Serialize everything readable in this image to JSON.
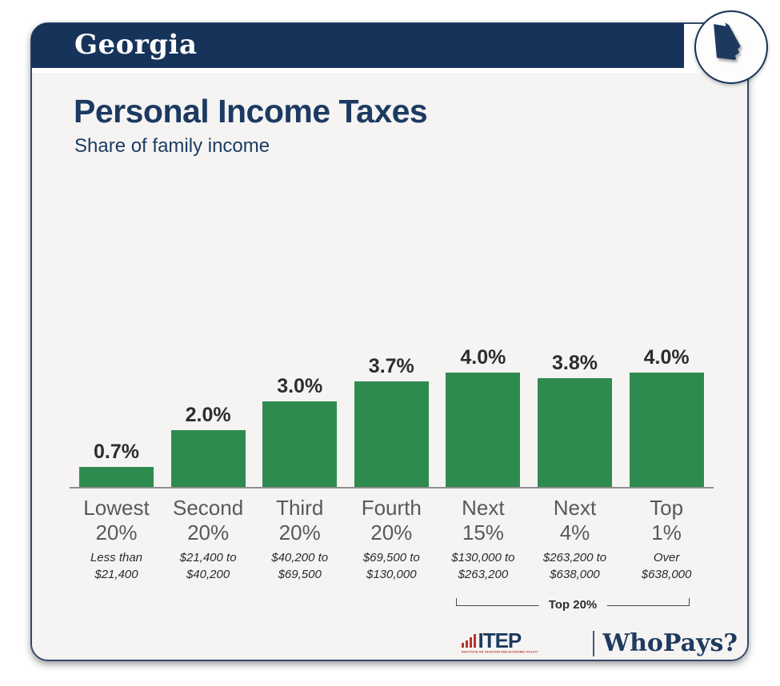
{
  "header": {
    "state_name": "Georgia"
  },
  "title": "Personal Income Taxes",
  "subtitle": "Share of family income",
  "chart_data": {
    "type": "bar",
    "title": "Personal Income Taxes",
    "subtitle": "Share of family income",
    "unit": "percent of family income",
    "categories": [
      [
        "Lowest",
        "20%"
      ],
      [
        "Second",
        "20%"
      ],
      [
        "Third",
        "20%"
      ],
      [
        "Fourth",
        "20%"
      ],
      [
        "Next",
        "15%"
      ],
      [
        "Next",
        "4%"
      ],
      [
        "Top",
        "1%"
      ]
    ],
    "income_ranges": [
      [
        "Less than",
        "$21,400"
      ],
      [
        "$21,400 to",
        "$40,200"
      ],
      [
        "$40,200 to",
        "$69,500"
      ],
      [
        "$69,500 to",
        "$130,000"
      ],
      [
        "$130,000 to",
        "$263,200"
      ],
      [
        "$263,200 to",
        "$638,000"
      ],
      [
        "Over",
        "$638,000"
      ]
    ],
    "values": [
      0.7,
      2.0,
      3.0,
      3.7,
      4.0,
      3.8,
      4.0
    ],
    "value_labels": [
      "0.7%",
      "2.0%",
      "3.0%",
      "3.7%",
      "4.0%",
      "3.8%",
      "4.0%"
    ],
    "ylim": [
      0,
      4.4
    ],
    "grid": false,
    "legend": "none",
    "bar_color": "#2e8b50",
    "bracket": {
      "label": "Top 20%",
      "from_index": 4,
      "to_index": 6
    }
  },
  "footer": {
    "itep_acronym": "ITEP",
    "itep_full": "INSTITUTE ON TAXATION AND ECONOMIC POLICY",
    "brand": "WhoPays?"
  },
  "colors": {
    "navy": "#16335a",
    "title_navy": "#1c3a61",
    "bar_green": "#2e8b50",
    "logo_red": "#b7362c",
    "card_bg": "#f5f4f3",
    "category_gray": "#58595b"
  }
}
